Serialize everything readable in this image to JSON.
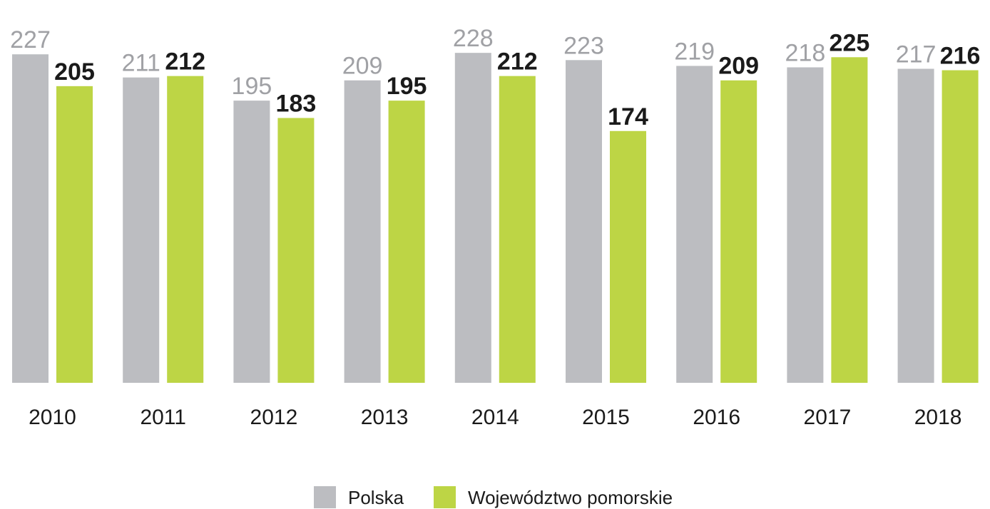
{
  "chart_data": {
    "type": "bar",
    "categories": [
      "2010",
      "2011",
      "2012",
      "2013",
      "2014",
      "2015",
      "2016",
      "2017",
      "2018"
    ],
    "series": [
      {
        "name": "Polska",
        "color": "#bcbdc1",
        "values": [
          227,
          211,
          195,
          209,
          228,
          223,
          219,
          218,
          217
        ]
      },
      {
        "name": "Województwo pomorskie",
        "color": "#bdd545",
        "values": [
          205,
          212,
          183,
          195,
          212,
          174,
          209,
          225,
          216
        ]
      }
    ]
  }
}
